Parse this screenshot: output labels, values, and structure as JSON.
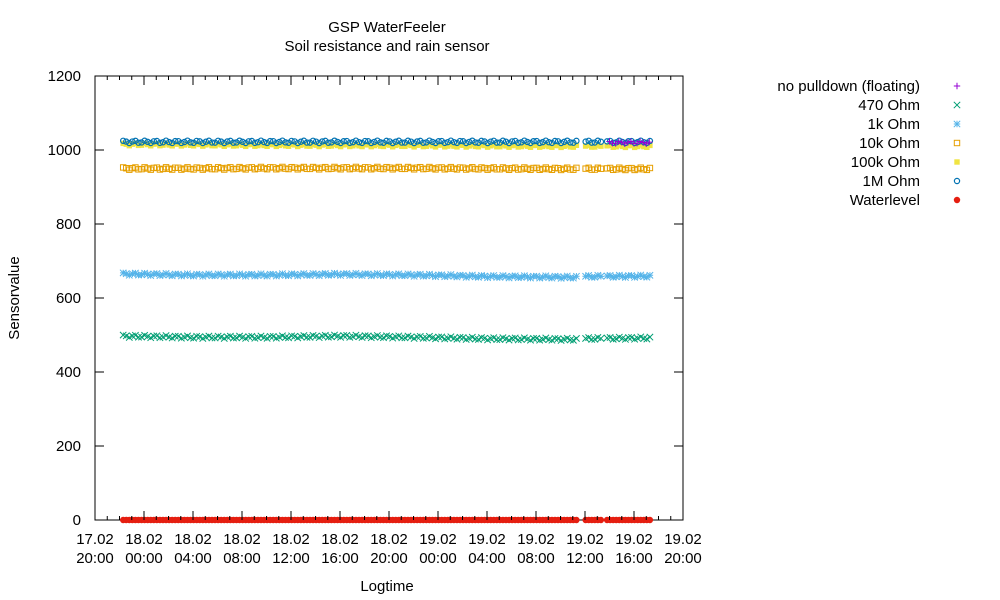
{
  "chart_data": {
    "type": "scatter",
    "title": "GSP WaterFeeler",
    "subtitle": "Soil resistance and rain sensor",
    "xlabel": "Logtime",
    "ylabel": "Sensorvalue",
    "ylim": [
      0,
      1200
    ],
    "yticks": [
      0,
      200,
      400,
      600,
      800,
      1000,
      1200
    ],
    "xlim": [
      "17.02 20:00",
      "19.02 20:00"
    ],
    "xticks": [
      {
        "t": 0,
        "date": "17.02",
        "time": "20:00"
      },
      {
        "t": 4,
        "date": "18.02",
        "time": "00:00"
      },
      {
        "t": 8,
        "date": "18.02",
        "time": "04:00"
      },
      {
        "t": 12,
        "date": "18.02",
        "time": "08:00"
      },
      {
        "t": 16,
        "date": "18.02",
        "time": "12:00"
      },
      {
        "t": 20,
        "date": "18.02",
        "time": "16:00"
      },
      {
        "t": 24,
        "date": "18.02",
        "time": "20:00"
      },
      {
        "t": 28,
        "date": "19.02",
        "time": "00:00"
      },
      {
        "t": 32,
        "date": "19.02",
        "time": "04:00"
      },
      {
        "t": 36,
        "date": "19.02",
        "time": "08:00"
      },
      {
        "t": 40,
        "date": "19.02",
        "time": "12:00"
      },
      {
        "t": 44,
        "date": "19.02",
        "time": "16:00"
      },
      {
        "t": 48,
        "date": "19.02",
        "time": "20:00"
      }
    ],
    "grid": false,
    "legend_position": "top-right",
    "data_segments_hours": [
      [
        2.3,
        39.4
      ],
      [
        40.0,
        41.3
      ],
      [
        41.7,
        45.4
      ]
    ],
    "series": [
      {
        "name": "no pulldown (floating)",
        "marker": "plus",
        "color": "#9400d3",
        "points": [
          [
            42.0,
            1020
          ],
          [
            45.4,
            1020
          ]
        ]
      },
      {
        "name": "470 Ohm",
        "marker": "cross",
        "color": "#009e73",
        "points": [
          [
            2.3,
            497
          ],
          [
            8,
            494
          ],
          [
            14,
            494
          ],
          [
            20,
            497
          ],
          [
            26,
            494
          ],
          [
            32,
            490
          ],
          [
            39.4,
            488
          ],
          [
            40.0,
            490
          ],
          [
            45.4,
            492
          ]
        ]
      },
      {
        "name": "1k Ohm",
        "marker": "star",
        "color": "#56b4e9",
        "points": [
          [
            2.3,
            665
          ],
          [
            8,
            662
          ],
          [
            14,
            662
          ],
          [
            20,
            664
          ],
          [
            26,
            662
          ],
          [
            32,
            658
          ],
          [
            39.4,
            656
          ],
          [
            40.0,
            658
          ],
          [
            45.4,
            659
          ]
        ]
      },
      {
        "name": "10k Ohm",
        "marker": "square-open",
        "color": "#e69f00",
        "points": [
          [
            2.3,
            950
          ],
          [
            8,
            950
          ],
          [
            14,
            951
          ],
          [
            20,
            951
          ],
          [
            26,
            951
          ],
          [
            32,
            950
          ],
          [
            39.4,
            949
          ],
          [
            40.0,
            949
          ],
          [
            45.4,
            949
          ]
        ]
      },
      {
        "name": "100k Ohm",
        "marker": "square-filled",
        "color": "#f0e442",
        "points": [
          [
            2.3,
            1015
          ],
          [
            12,
            1013
          ],
          [
            24,
            1012
          ],
          [
            39.4,
            1010
          ],
          [
            40.0,
            1010
          ],
          [
            45.4,
            1010
          ]
        ]
      },
      {
        "name": "1M Ohm",
        "marker": "circle-open",
        "color": "#0072b2",
        "points": [
          [
            2.3,
            1022
          ],
          [
            12,
            1022
          ],
          [
            24,
            1022
          ],
          [
            39.4,
            1022
          ],
          [
            40.0,
            1022
          ],
          [
            45.4,
            1022
          ]
        ]
      },
      {
        "name": "Waterlevel",
        "marker": "circle-filled",
        "color": "#e51e10",
        "points": [
          [
            2.3,
            0
          ],
          [
            39.4,
            0
          ],
          [
            40.0,
            0
          ],
          [
            45.4,
            0
          ]
        ]
      }
    ]
  }
}
